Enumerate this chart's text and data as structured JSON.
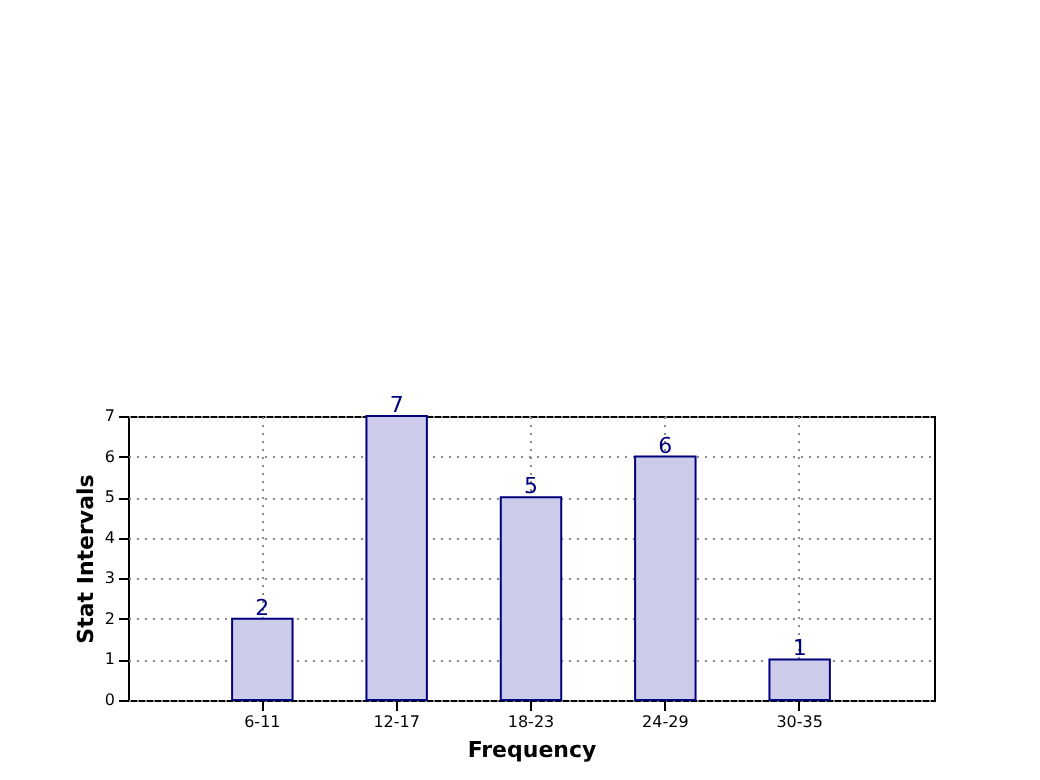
{
  "chart_data": {
    "type": "bar",
    "xlabel": "Frequency",
    "ylabel": "Stat Intervals",
    "categories": [
      "6-11",
      "12-17",
      "18-23",
      "24-29",
      "30-35"
    ],
    "values": [
      2,
      7,
      5,
      6,
      1
    ],
    "color": "#ccccea",
    "ylim": [
      0,
      7
    ],
    "yticks": [
      0,
      1,
      2,
      3,
      4,
      5,
      6,
      7
    ],
    "grid": true,
    "data_labels": true
  }
}
